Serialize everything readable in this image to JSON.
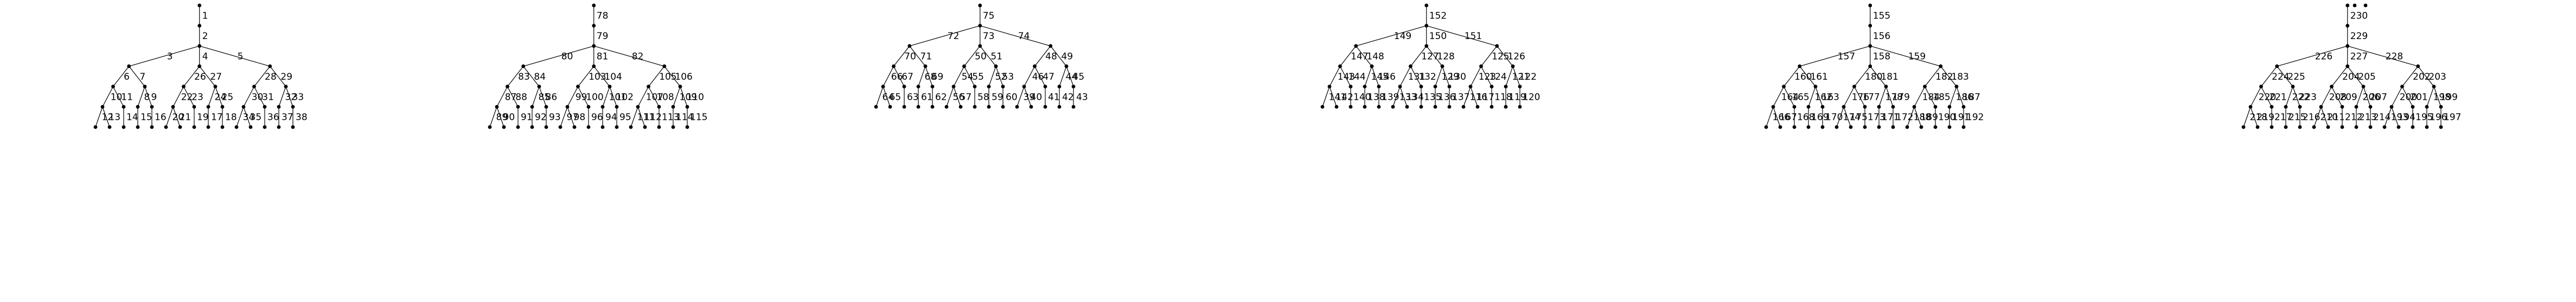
{
  "diagram": {
    "type": "forest-of-trees",
    "edges": [
      [
        "0",
        "1"
      ],
      [
        "1",
        "2"
      ],
      [
        "2",
        "3"
      ],
      [
        "2",
        "4"
      ],
      [
        "2",
        "5"
      ],
      [
        "3",
        "6"
      ],
      [
        "3",
        "7"
      ],
      [
        "6",
        "10"
      ],
      [
        "6",
        "11"
      ],
      [
        "10",
        "12"
      ],
      [
        "10",
        "13"
      ],
      [
        "11",
        "14"
      ],
      [
        "7",
        "8"
      ],
      [
        "7",
        "9"
      ],
      [
        "8",
        "15"
      ],
      [
        "9",
        "16"
      ],
      [
        "4",
        "26"
      ],
      [
        "4",
        "27"
      ],
      [
        "26",
        "22"
      ],
      [
        "26",
        "23"
      ],
      [
        "22",
        "20"
      ],
      [
        "22",
        "21"
      ],
      [
        "23",
        "19"
      ],
      [
        "27",
        "24"
      ],
      [
        "27",
        "25"
      ],
      [
        "24",
        "17"
      ],
      [
        "25",
        "18"
      ],
      [
        "5",
        "28"
      ],
      [
        "5",
        "29"
      ],
      [
        "28",
        "30"
      ],
      [
        "28",
        "31"
      ],
      [
        "30",
        "34"
      ],
      [
        "30",
        "35"
      ],
      [
        "31",
        "36"
      ],
      [
        "29",
        "32"
      ],
      [
        "29",
        "33"
      ],
      [
        "32",
        "37"
      ],
      [
        "33",
        "38"
      ],
      [
        "77",
        "78"
      ],
      [
        "78",
        "79"
      ],
      [
        "79",
        "80"
      ],
      [
        "79",
        "81"
      ],
      [
        "79",
        "82"
      ],
      [
        "80",
        "83"
      ],
      [
        "80",
        "84"
      ],
      [
        "83",
        "87"
      ],
      [
        "83",
        "88"
      ],
      [
        "87",
        "89"
      ],
      [
        "87",
        "90"
      ],
      [
        "88",
        "91"
      ],
      [
        "84",
        "85"
      ],
      [
        "84",
        "86"
      ],
      [
        "85",
        "92"
      ],
      [
        "86",
        "93"
      ],
      [
        "81",
        "103"
      ],
      [
        "81",
        "104"
      ],
      [
        "103",
        "99"
      ],
      [
        "103",
        "100"
      ],
      [
        "99",
        "97"
      ],
      [
        "99",
        "98"
      ],
      [
        "100",
        "96"
      ],
      [
        "104",
        "101"
      ],
      [
        "104",
        "102"
      ],
      [
        "101",
        "94"
      ],
      [
        "102",
        "95"
      ],
      [
        "82",
        "105"
      ],
      [
        "82",
        "106"
      ],
      [
        "105",
        "107"
      ],
      [
        "105",
        "108"
      ],
      [
        "107",
        "111"
      ],
      [
        "107",
        "112"
      ],
      [
        "108",
        "113"
      ],
      [
        "106",
        "109"
      ],
      [
        "106",
        "110"
      ],
      [
        "109",
        "114"
      ],
      [
        "110",
        "115"
      ],
      [
        "76",
        "75"
      ],
      [
        "75",
        "72"
      ],
      [
        "75",
        "73"
      ],
      [
        "75",
        "74"
      ],
      [
        "72",
        "70"
      ],
      [
        "72",
        "71"
      ],
      [
        "70",
        "66"
      ],
      [
        "70",
        "67"
      ],
      [
        "66",
        "64"
      ],
      [
        "66",
        "65"
      ],
      [
        "67",
        "63"
      ],
      [
        "71",
        "68"
      ],
      [
        "71",
        "69"
      ],
      [
        "68",
        "61"
      ],
      [
        "69",
        "62"
      ],
      [
        "73",
        "50"
      ],
      [
        "73",
        "51"
      ],
      [
        "50",
        "54"
      ],
      [
        "50",
        "55"
      ],
      [
        "54",
        "56"
      ],
      [
        "54",
        "57"
      ],
      [
        "55",
        "58"
      ],
      [
        "51",
        "52"
      ],
      [
        "51",
        "53"
      ],
      [
        "52",
        "59"
      ],
      [
        "53",
        "60"
      ],
      [
        "74",
        "48"
      ],
      [
        "74",
        "49"
      ],
      [
        "48",
        "46"
      ],
      [
        "48",
        "47"
      ],
      [
        "46",
        "39"
      ],
      [
        "46",
        "40"
      ],
      [
        "47",
        "41"
      ],
      [
        "49",
        "44"
      ],
      [
        "49",
        "45"
      ],
      [
        "44",
        "42"
      ],
      [
        "45",
        "43"
      ],
      [
        "153",
        "152"
      ],
      [
        "152",
        "149"
      ],
      [
        "152",
        "150"
      ],
      [
        "152",
        "151"
      ],
      [
        "149",
        "147"
      ],
      [
        "149",
        "148"
      ],
      [
        "147",
        "143"
      ],
      [
        "147",
        "144"
      ],
      [
        "143",
        "141"
      ],
      [
        "143",
        "142"
      ],
      [
        "144",
        "140"
      ],
      [
        "148",
        "145"
      ],
      [
        "148",
        "146"
      ],
      [
        "145",
        "138"
      ],
      [
        "146",
        "139"
      ],
      [
        "150",
        "127"
      ],
      [
        "150",
        "128"
      ],
      [
        "127",
        "131"
      ],
      [
        "127",
        "132"
      ],
      [
        "131",
        "133"
      ],
      [
        "131",
        "134"
      ],
      [
        "132",
        "135"
      ],
      [
        "128",
        "129"
      ],
      [
        "128",
        "130"
      ],
      [
        "129",
        "136"
      ],
      [
        "130",
        "137"
      ],
      [
        "151",
        "125"
      ],
      [
        "151",
        "126"
      ],
      [
        "125",
        "123"
      ],
      [
        "125",
        "124"
      ],
      [
        "123",
        "116"
      ],
      [
        "123",
        "117"
      ],
      [
        "124",
        "118"
      ],
      [
        "126",
        "121"
      ],
      [
        "126",
        "122"
      ],
      [
        "121",
        "119"
      ],
      [
        "122",
        "120"
      ],
      [
        "154",
        "155"
      ],
      [
        "155",
        "156"
      ],
      [
        "156",
        "157"
      ],
      [
        "156",
        "158"
      ],
      [
        "156",
        "159"
      ],
      [
        "157",
        "160"
      ],
      [
        "157",
        "161"
      ],
      [
        "160",
        "164"
      ],
      [
        "160",
        "165"
      ],
      [
        "164",
        "166"
      ],
      [
        "164",
        "167"
      ],
      [
        "165",
        "168"
      ],
      [
        "161",
        "162"
      ],
      [
        "161",
        "163"
      ],
      [
        "162",
        "169"
      ],
      [
        "163",
        "170"
      ],
      [
        "158",
        "180"
      ],
      [
        "158",
        "181"
      ],
      [
        "180",
        "176"
      ],
      [
        "180",
        "177"
      ],
      [
        "176",
        "174"
      ],
      [
        "176",
        "175"
      ],
      [
        "177",
        "173"
      ],
      [
        "181",
        "178"
      ],
      [
        "181",
        "179"
      ],
      [
        "178",
        "171"
      ],
      [
        "179",
        "172"
      ],
      [
        "159",
        "182"
      ],
      [
        "159",
        "183"
      ],
      [
        "182",
        "184"
      ],
      [
        "182",
        "185"
      ],
      [
        "184",
        "188"
      ],
      [
        "184",
        "189"
      ],
      [
        "185",
        "190"
      ],
      [
        "183",
        "186"
      ],
      [
        "183",
        "187"
      ],
      [
        "186",
        "191"
      ],
      [
        "187",
        "192"
      ],
      [
        "231",
        "230"
      ],
      [
        "230",
        "229"
      ],
      [
        "229",
        "226"
      ],
      [
        "229",
        "227"
      ],
      [
        "229",
        "228"
      ],
      [
        "226",
        "224"
      ],
      [
        "226",
        "225"
      ],
      [
        "224",
        "220"
      ],
      [
        "224",
        "221"
      ],
      [
        "220",
        "218"
      ],
      [
        "220",
        "219"
      ],
      [
        "221",
        "217"
      ],
      [
        "225",
        "222"
      ],
      [
        "225",
        "223"
      ],
      [
        "222",
        "215"
      ],
      [
        "223",
        "216"
      ],
      [
        "227",
        "204"
      ],
      [
        "227",
        "205"
      ],
      [
        "204",
        "208"
      ],
      [
        "204",
        "209"
      ],
      [
        "208",
        "210"
      ],
      [
        "208",
        "211"
      ],
      [
        "209",
        "212"
      ],
      [
        "205",
        "206"
      ],
      [
        "205",
        "207"
      ],
      [
        "206",
        "213"
      ],
      [
        "207",
        "214"
      ],
      [
        "228",
        "202"
      ],
      [
        "228",
        "203"
      ],
      [
        "202",
        "200"
      ],
      [
        "202",
        "201"
      ],
      [
        "200",
        "193"
      ],
      [
        "200",
        "194"
      ],
      [
        "201",
        "195"
      ],
      [
        "203",
        "198"
      ],
      [
        "203",
        "199"
      ],
      [
        "198",
        "196"
      ],
      [
        "199",
        "197"
      ]
    ],
    "isolated_nodes": [
      "232",
      "233"
    ],
    "show_isolated_labels": false
  }
}
